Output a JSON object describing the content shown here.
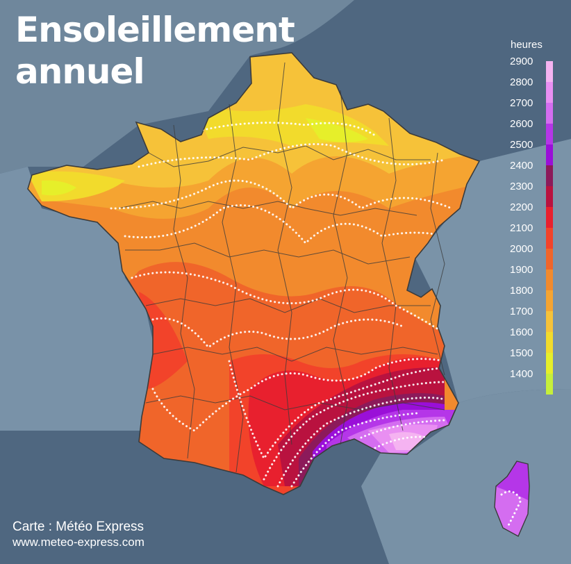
{
  "title": {
    "line1": "Ensoleillement",
    "line2": "annuel"
  },
  "credit": {
    "line1": "Carte : Météo Express",
    "line2": "www.meteo-express.com"
  },
  "legend": {
    "unit": "heures",
    "ticks": [
      "2900",
      "2800",
      "2700",
      "2600",
      "2500",
      "2400",
      "2300",
      "2200",
      "2100",
      "2000",
      "1900",
      "1800",
      "1700",
      "1600",
      "1500",
      "1400"
    ],
    "colors": [
      "#f5b3f1",
      "#e98ff2",
      "#d46df0",
      "#b536e8",
      "#9a0fd8",
      "#8c1a5a",
      "#b9123f",
      "#e8202e",
      "#f2432a",
      "#f0652a",
      "#f28a2d",
      "#f5a431",
      "#f6c239",
      "#f2db2c",
      "#e6ef2a",
      "#c6ef3a"
    ]
  },
  "map": {
    "region": "France",
    "features": [
      "mainland-france",
      "corsica",
      "departement-borders",
      "isohelion-dotted-lines"
    ],
    "colors": {
      "sea": "#4f6780",
      "land_background": "#7790a6",
      "border": "#3b3b3b"
    }
  }
}
